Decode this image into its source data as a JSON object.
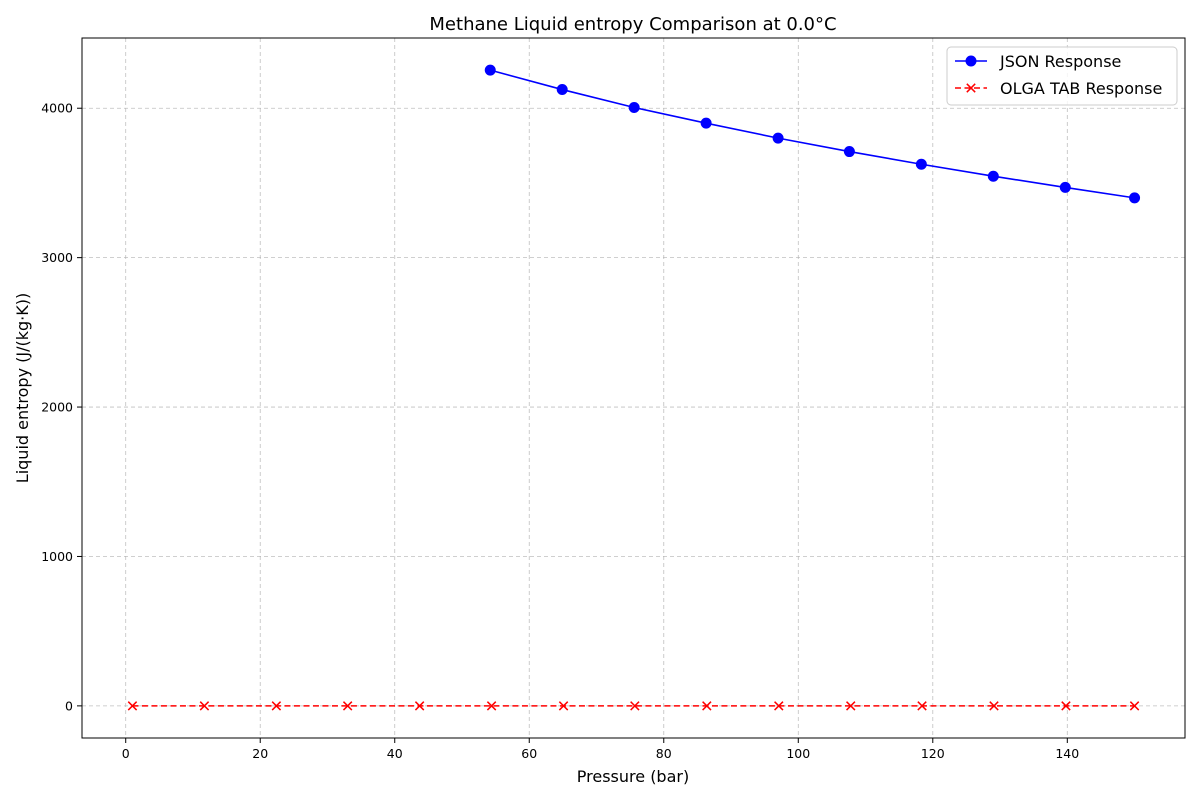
{
  "chart_data": {
    "type": "line",
    "title": "Methane Liquid entropy Comparison at 0.0°C",
    "xlabel": "Pressure (bar)",
    "ylabel": "Liquid entropy (J/(kg·K))",
    "xlim": [
      -6.5,
      157.5
    ],
    "ylim": [
      -215,
      4470
    ],
    "x_ticks": [
      0,
      20,
      40,
      60,
      80,
      100,
      120,
      140
    ],
    "y_ticks": [
      0,
      1000,
      2000,
      3000,
      4000
    ],
    "grid": true,
    "legend_position": "top-right",
    "series": [
      {
        "name": "JSON Response",
        "color": "#0000ff",
        "line_style": "solid",
        "marker": "circle",
        "x": [
          54.2,
          64.9,
          75.6,
          86.3,
          97.0,
          107.6,
          118.3,
          129.0,
          139.7,
          150.0
        ],
        "y": [
          4255,
          4125,
          4005,
          3900,
          3800,
          3710,
          3625,
          3545,
          3470,
          3400
        ]
      },
      {
        "name": "OLGA TAB Response",
        "color": "#ff0000",
        "line_style": "dashed",
        "marker": "x",
        "x": [
          1.0,
          11.7,
          22.4,
          33.0,
          43.7,
          54.4,
          65.1,
          75.7,
          86.4,
          97.1,
          107.8,
          118.4,
          129.1,
          139.8,
          150.0
        ],
        "y": [
          0,
          0,
          0,
          0,
          0,
          0,
          0,
          0,
          0,
          0,
          0,
          0,
          0,
          0,
          0
        ]
      }
    ]
  }
}
